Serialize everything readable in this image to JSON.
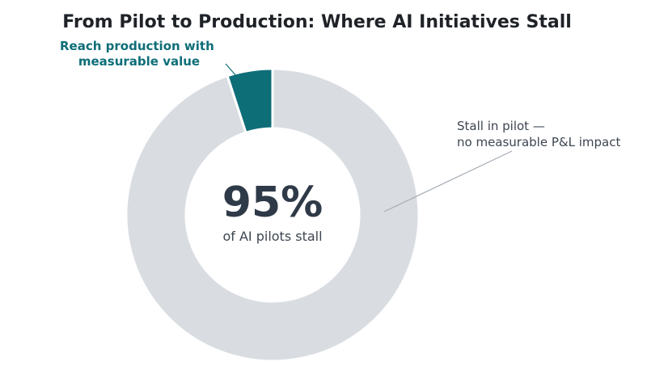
{
  "chart_data": {
    "type": "pie",
    "title": "From Pilot to Production: Where AI Initiatives Stall",
    "slices": [
      {
        "value": 5,
        "label_lines": [
          "Reach production with",
          "measurable value"
        ],
        "color": "#0e6e78"
      },
      {
        "value": 95,
        "label_lines": [
          "Stall in pilot —",
          "no measurable P&L impact"
        ],
        "color": "#d9dde2"
      }
    ],
    "center": {
      "value": "95%",
      "label": "of AI pilots stall"
    }
  }
}
